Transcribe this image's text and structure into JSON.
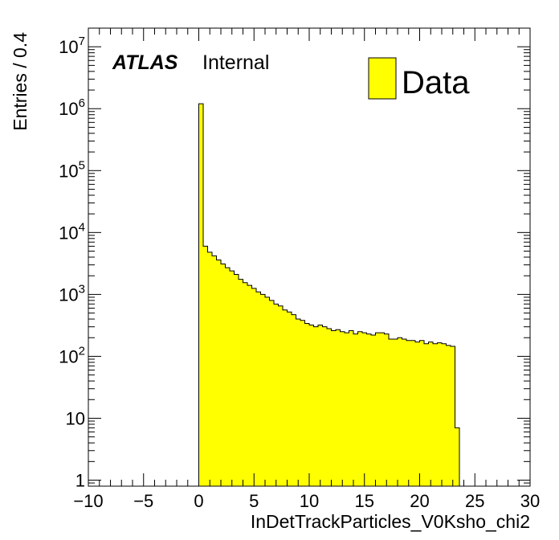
{
  "chart_data": {
    "type": "bar",
    "style": "histogram",
    "xlabel": "InDetTrackParticles_V0Ksho_chi2",
    "ylabel": "Entries / 0.4",
    "xlim": [
      -10,
      30
    ],
    "ylim": [
      0.8,
      20000000
    ],
    "ylog": true,
    "bin_width": 0.4,
    "x_ticks": [
      -10,
      -5,
      0,
      5,
      10,
      15,
      20,
      25,
      30
    ],
    "x_tick_labels": [
      "−10",
      "−5",
      "0",
      "5",
      "10",
      "15",
      "20",
      "25",
      "30"
    ],
    "y_ticks": [
      {
        "value": 1,
        "base": "1",
        "exp": ""
      },
      {
        "value": 10,
        "base": "10",
        "exp": ""
      },
      {
        "value": 100,
        "base": "10",
        "exp": "2"
      },
      {
        "value": 1000,
        "base": "10",
        "exp": "3"
      },
      {
        "value": 10000,
        "base": "10",
        "exp": "4"
      },
      {
        "value": 100000,
        "base": "10",
        "exp": "5"
      },
      {
        "value": 1000000,
        "base": "10",
        "exp": "6"
      },
      {
        "value": 10000000,
        "base": "10",
        "exp": "7"
      }
    ],
    "bin_edges_start": 0,
    "series": [
      {
        "name": "Data",
        "color": "#ffff00",
        "values": [
          1200000,
          6000,
          4800,
          4200,
          3600,
          3100,
          2700,
          2400,
          2100,
          1750,
          1550,
          1400,
          1250,
          1100,
          1000,
          900,
          800,
          700,
          650,
          560,
          520,
          470,
          400,
          380,
          340,
          320,
          300,
          320,
          300,
          280,
          260,
          270,
          250,
          240,
          260,
          230,
          250,
          240,
          230,
          220,
          240,
          240,
          230,
          190,
          190,
          200,
          190,
          180,
          180,
          170,
          180,
          160,
          170,
          160,
          165,
          160,
          150,
          145,
          7
        ]
      }
    ],
    "legend": {
      "position": "top-right",
      "entries": [
        "Data"
      ]
    },
    "annotation": {
      "bold": "ATLAS",
      "text": "Internal"
    },
    "grid": false
  }
}
